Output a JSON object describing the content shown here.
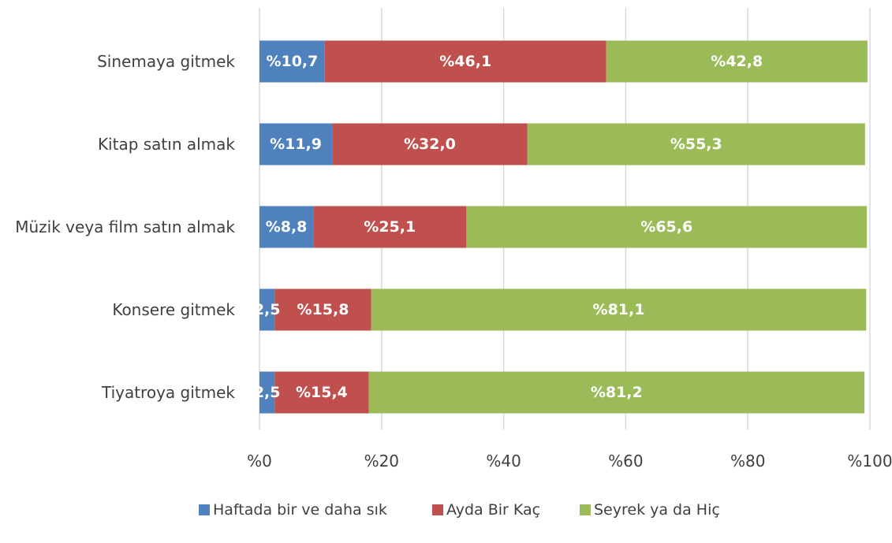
{
  "chart_data": {
    "type": "bar",
    "orientation": "horizontal",
    "stacked": true,
    "categories": [
      "Sinemaya gitmek",
      "Kitap satın almak",
      "Müzik veya film satın almak",
      "Konsere gitmek",
      "Tiyatroya gitmek"
    ],
    "series": [
      {
        "name": "Haftada bir ve daha sık",
        "color": "#4f81bd",
        "values": [
          10.7,
          11.9,
          8.8,
          2.5,
          2.5
        ],
        "labels": [
          "%10,7",
          "%11,9",
          "%8,8",
          "2,5",
          "2,5"
        ]
      },
      {
        "name": "Ayda Bir Kaç",
        "color": "#c0504d",
        "values": [
          46.1,
          32.0,
          25.1,
          15.8,
          15.4
        ],
        "labels": [
          "%46,1",
          "%32,0",
          "%25,1",
          "%15,8",
          "%15,4"
        ]
      },
      {
        "name": "Seyrek ya da Hiç",
        "color": "#9bbb59",
        "values": [
          42.8,
          55.3,
          65.6,
          81.1,
          81.2
        ],
        "labels": [
          "%42,8",
          "%55,3",
          "%65,6",
          "%81,1",
          "%81,2"
        ]
      }
    ],
    "xlim": [
      0,
      100
    ],
    "xticks": [
      0,
      20,
      40,
      60,
      80,
      100
    ],
    "xtick_labels": [
      "%0",
      "%20",
      "%40",
      "%60",
      "%80",
      "%100"
    ],
    "title": "",
    "xlabel": "",
    "ylabel": "",
    "grid": "vertical",
    "legend": "bottom"
  }
}
